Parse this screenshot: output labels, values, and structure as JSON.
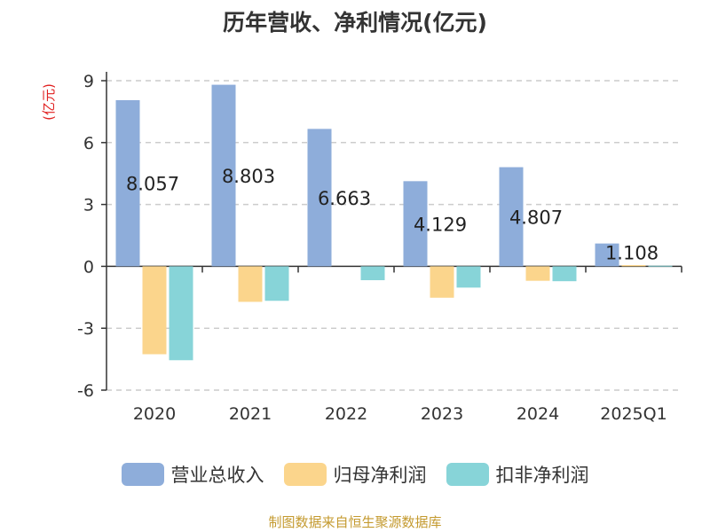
{
  "chart_data": {
    "type": "bar",
    "title": "历年营收、净利情况(亿元)",
    "ylabel": "(亿元)",
    "categories": [
      "2020",
      "2021",
      "2022",
      "2023",
      "2024",
      "2025Q1"
    ],
    "series": [
      {
        "name": "营业总收入",
        "color": "#8eadda",
        "values": [
          8.057,
          8.803,
          6.663,
          4.129,
          4.807,
          1.108
        ]
      },
      {
        "name": "归母净利润",
        "color": "#fbd58c",
        "values": [
          -4.26,
          -1.72,
          0,
          -1.52,
          -0.7,
          0.06
        ]
      },
      {
        "name": "扣非净利润",
        "color": "#87d4d8",
        "values": [
          -4.55,
          -1.67,
          -0.67,
          -1.03,
          -0.72,
          0.03
        ]
      }
    ],
    "data_labels": [
      "8.057",
      "8.803",
      "6.663",
      "4.129",
      "4.807",
      "1.108"
    ],
    "yticks": [
      9,
      6,
      3,
      0,
      -3,
      -6
    ],
    "ytick_labels": [
      "9",
      "6",
      "3",
      "0",
      "-3",
      "-6"
    ],
    "ylim": [
      -6,
      9
    ],
    "grid": true,
    "legend_position": "bottom"
  },
  "source": "制图数据来自恒生聚源数据库"
}
